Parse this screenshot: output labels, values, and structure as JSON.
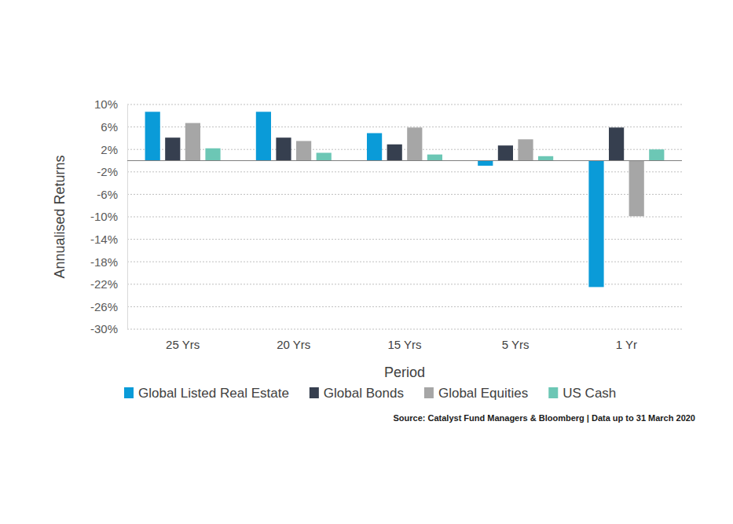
{
  "chart_data": {
    "type": "bar",
    "x_label": "Period",
    "y_label": "Annualised Returns",
    "source": "Source: Catalyst Fund Managers & Bloomberg | Data up to 31 March 2020",
    "categories": [
      "25 Yrs",
      "20 Yrs",
      "15 Yrs",
      "5 Yrs",
      "1 Yr"
    ],
    "series": [
      {
        "name": "Global Listed Real Estate",
        "color": "#0a9bd8",
        "values": [
          8.7,
          8.7,
          4.9,
          -0.9,
          -22.5
        ]
      },
      {
        "name": "Global Bonds",
        "color": "#363f4f",
        "values": [
          4.1,
          4.1,
          2.9,
          2.7,
          5.9
        ]
      },
      {
        "name": "Global Equities",
        "color": "#a6a6a6",
        "values": [
          6.7,
          3.5,
          5.9,
          3.8,
          -9.9
        ]
      },
      {
        "name": "US Cash",
        "color": "#6cc7b5",
        "values": [
          2.2,
          1.4,
          1.1,
          0.8,
          2.0
        ]
      }
    ],
    "ylim": [
      -30,
      10
    ],
    "yticks": [
      {
        "value": 10,
        "label": "10%"
      },
      {
        "value": 6,
        "label": "6%"
      },
      {
        "value": 2,
        "label": "2%"
      },
      {
        "value": -2,
        "label": "-2%"
      },
      {
        "value": -6,
        "label": "-6%"
      },
      {
        "value": -10,
        "label": "-10%"
      },
      {
        "value": -14,
        "label": "-14%"
      },
      {
        "value": -18,
        "label": "-18%"
      },
      {
        "value": -22,
        "label": "-22%"
      },
      {
        "value": -26,
        "label": "-26%"
      },
      {
        "value": -30,
        "label": "-30%"
      }
    ],
    "grid": true,
    "legend": "bottom"
  }
}
